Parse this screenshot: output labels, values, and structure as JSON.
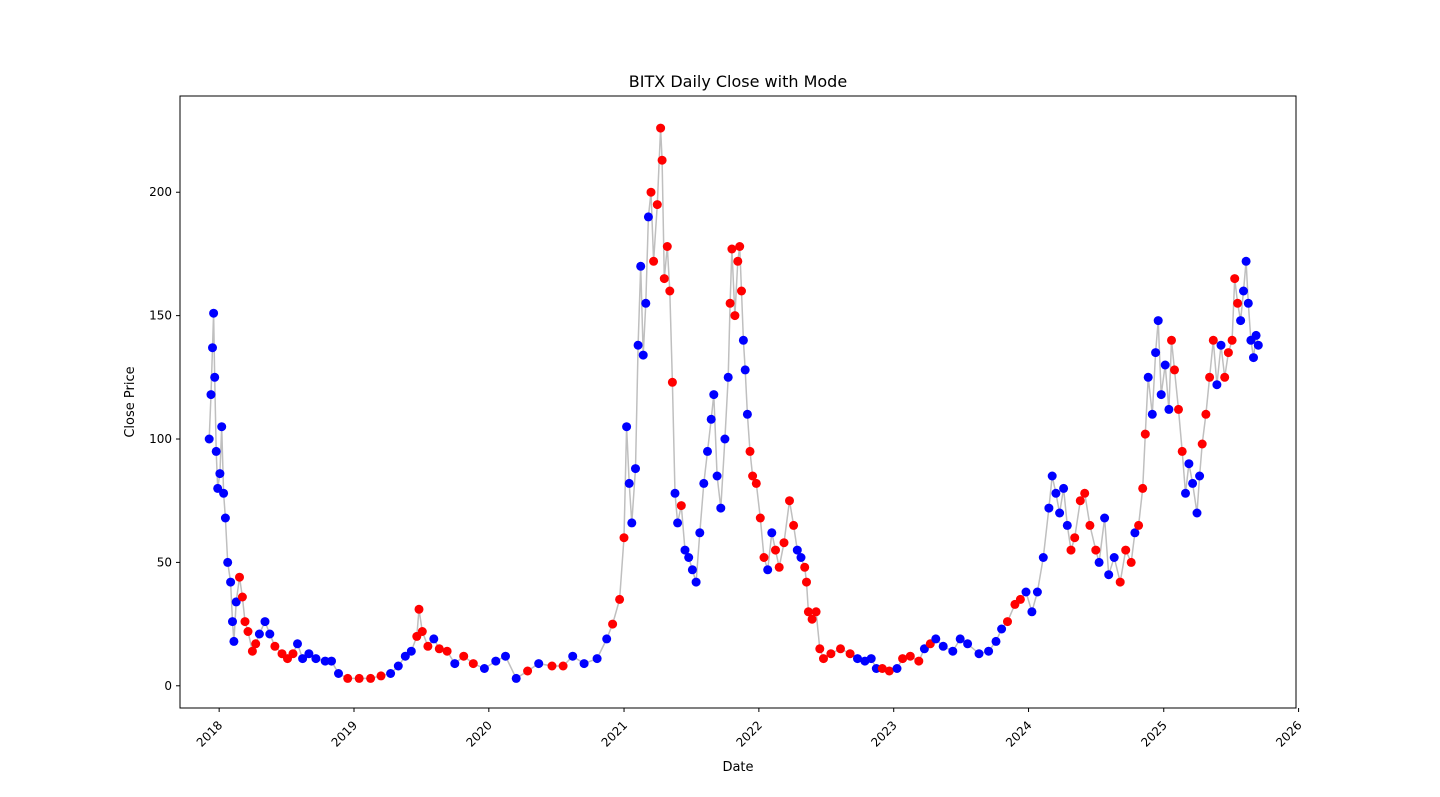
{
  "chart_data": {
    "type": "scatter",
    "title": "BITX Daily Close with Mode",
    "xlabel": "Date",
    "ylabel": "Close Price",
    "xlim": [
      "2017-09-17",
      "2025-12-25"
    ],
    "ylim": [
      -9,
      239
    ],
    "x_ticks": [
      "2018",
      "2019",
      "2020",
      "2021",
      "2022",
      "2023",
      "2024",
      "2025",
      "2026"
    ],
    "y_ticks": [
      0,
      50,
      100,
      150,
      200
    ],
    "grid": false,
    "legend": "none",
    "line_color": "#bfbfbf",
    "mode_colors": {
      "blue": "#0000ff",
      "red": "#ff0000"
    },
    "series": [
      {
        "x": "2017-12-05",
        "y": 100,
        "mode": "blue"
      },
      {
        "x": "2017-12-10",
        "y": 118,
        "mode": "blue"
      },
      {
        "x": "2017-12-14",
        "y": 137,
        "mode": "blue"
      },
      {
        "x": "2017-12-17",
        "y": 151,
        "mode": "blue"
      },
      {
        "x": "2017-12-20",
        "y": 125,
        "mode": "blue"
      },
      {
        "x": "2017-12-24",
        "y": 95,
        "mode": "blue"
      },
      {
        "x": "2017-12-28",
        "y": 80,
        "mode": "blue"
      },
      {
        "x": "2018-01-03",
        "y": 86,
        "mode": "blue"
      },
      {
        "x": "2018-01-08",
        "y": 105,
        "mode": "blue"
      },
      {
        "x": "2018-01-13",
        "y": 78,
        "mode": "blue"
      },
      {
        "x": "2018-01-18",
        "y": 68,
        "mode": "blue"
      },
      {
        "x": "2018-01-24",
        "y": 50,
        "mode": "blue"
      },
      {
        "x": "2018-02-01",
        "y": 42,
        "mode": "blue"
      },
      {
        "x": "2018-02-06",
        "y": 26,
        "mode": "blue"
      },
      {
        "x": "2018-02-10",
        "y": 18,
        "mode": "blue"
      },
      {
        "x": "2018-02-16",
        "y": 34,
        "mode": "blue"
      },
      {
        "x": "2018-02-25",
        "y": 44,
        "mode": "red"
      },
      {
        "x": "2018-03-05",
        "y": 36,
        "mode": "red"
      },
      {
        "x": "2018-03-12",
        "y": 26,
        "mode": "red"
      },
      {
        "x": "2018-03-20",
        "y": 22,
        "mode": "red"
      },
      {
        "x": "2018-04-01",
        "y": 14,
        "mode": "red"
      },
      {
        "x": "2018-04-10",
        "y": 17,
        "mode": "red"
      },
      {
        "x": "2018-04-20",
        "y": 21,
        "mode": "blue"
      },
      {
        "x": "2018-05-05",
        "y": 26,
        "mode": "blue"
      },
      {
        "x": "2018-05-18",
        "y": 21,
        "mode": "blue"
      },
      {
        "x": "2018-06-01",
        "y": 16,
        "mode": "red"
      },
      {
        "x": "2018-06-20",
        "y": 13,
        "mode": "red"
      },
      {
        "x": "2018-07-05",
        "y": 11,
        "mode": "red"
      },
      {
        "x": "2018-07-20",
        "y": 13,
        "mode": "red"
      },
      {
        "x": "2018-08-01",
        "y": 17,
        "mode": "blue"
      },
      {
        "x": "2018-08-15",
        "y": 11,
        "mode": "blue"
      },
      {
        "x": "2018-09-01",
        "y": 13,
        "mode": "blue"
      },
      {
        "x": "2018-09-20",
        "y": 11,
        "mode": "blue"
      },
      {
        "x": "2018-10-15",
        "y": 10,
        "mode": "blue"
      },
      {
        "x": "2018-11-01",
        "y": 10,
        "mode": "blue"
      },
      {
        "x": "2018-11-20",
        "y": 5,
        "mode": "blue"
      },
      {
        "x": "2018-12-15",
        "y": 3,
        "mode": "red"
      },
      {
        "x": "2019-01-15",
        "y": 3,
        "mode": "red"
      },
      {
        "x": "2019-02-15",
        "y": 3,
        "mode": "red"
      },
      {
        "x": "2019-03-15",
        "y": 4,
        "mode": "red"
      },
      {
        "x": "2019-04-10",
        "y": 5,
        "mode": "blue"
      },
      {
        "x": "2019-05-01",
        "y": 8,
        "mode": "blue"
      },
      {
        "x": "2019-05-20",
        "y": 12,
        "mode": "blue"
      },
      {
        "x": "2019-06-05",
        "y": 14,
        "mode": "blue"
      },
      {
        "x": "2019-06-20",
        "y": 20,
        "mode": "red"
      },
      {
        "x": "2019-06-26",
        "y": 31,
        "mode": "red"
      },
      {
        "x": "2019-07-05",
        "y": 22,
        "mode": "red"
      },
      {
        "x": "2019-07-20",
        "y": 16,
        "mode": "red"
      },
      {
        "x": "2019-08-05",
        "y": 19,
        "mode": "blue"
      },
      {
        "x": "2019-08-20",
        "y": 15,
        "mode": "red"
      },
      {
        "x": "2019-09-10",
        "y": 14,
        "mode": "red"
      },
      {
        "x": "2019-10-01",
        "y": 9,
        "mode": "blue"
      },
      {
        "x": "2019-10-25",
        "y": 12,
        "mode": "red"
      },
      {
        "x": "2019-11-20",
        "y": 9,
        "mode": "red"
      },
      {
        "x": "2019-12-20",
        "y": 7,
        "mode": "blue"
      },
      {
        "x": "2020-01-20",
        "y": 10,
        "mode": "blue"
      },
      {
        "x": "2020-02-15",
        "y": 12,
        "mode": "blue"
      },
      {
        "x": "2020-03-15",
        "y": 3,
        "mode": "blue"
      },
      {
        "x": "2020-04-15",
        "y": 6,
        "mode": "red"
      },
      {
        "x": "2020-05-15",
        "y": 9,
        "mode": "blue"
      },
      {
        "x": "2020-06-20",
        "y": 8,
        "mode": "red"
      },
      {
        "x": "2020-07-20",
        "y": 8,
        "mode": "red"
      },
      {
        "x": "2020-08-15",
        "y": 12,
        "mode": "blue"
      },
      {
        "x": "2020-09-15",
        "y": 9,
        "mode": "blue"
      },
      {
        "x": "2020-10-20",
        "y": 11,
        "mode": "blue"
      },
      {
        "x": "2020-11-15",
        "y": 19,
        "mode": "blue"
      },
      {
        "x": "2020-12-01",
        "y": 25,
        "mode": "red"
      },
      {
        "x": "2020-12-20",
        "y": 35,
        "mode": "red"
      },
      {
        "x": "2021-01-01",
        "y": 60,
        "mode": "red"
      },
      {
        "x": "2021-01-08",
        "y": 105,
        "mode": "blue"
      },
      {
        "x": "2021-01-15",
        "y": 82,
        "mode": "blue"
      },
      {
        "x": "2021-01-22",
        "y": 66,
        "mode": "blue"
      },
      {
        "x": "2021-02-01",
        "y": 88,
        "mode": "blue"
      },
      {
        "x": "2021-02-08",
        "y": 138,
        "mode": "blue"
      },
      {
        "x": "2021-02-15",
        "y": 170,
        "mode": "blue"
      },
      {
        "x": "2021-02-22",
        "y": 134,
        "mode": "blue"
      },
      {
        "x": "2021-03-01",
        "y": 155,
        "mode": "blue"
      },
      {
        "x": "2021-03-08",
        "y": 190,
        "mode": "blue"
      },
      {
        "x": "2021-03-15",
        "y": 200,
        "mode": "red"
      },
      {
        "x": "2021-03-22",
        "y": 172,
        "mode": "red"
      },
      {
        "x": "2021-04-01",
        "y": 195,
        "mode": "red"
      },
      {
        "x": "2021-04-10",
        "y": 226,
        "mode": "red"
      },
      {
        "x": "2021-04-14",
        "y": 213,
        "mode": "red"
      },
      {
        "x": "2021-04-20",
        "y": 165,
        "mode": "red"
      },
      {
        "x": "2021-04-28",
        "y": 178,
        "mode": "red"
      },
      {
        "x": "2021-05-05",
        "y": 160,
        "mode": "red"
      },
      {
        "x": "2021-05-12",
        "y": 123,
        "mode": "red"
      },
      {
        "x": "2021-05-19",
        "y": 78,
        "mode": "blue"
      },
      {
        "x": "2021-05-26",
        "y": 66,
        "mode": "blue"
      },
      {
        "x": "2021-06-05",
        "y": 73,
        "mode": "red"
      },
      {
        "x": "2021-06-15",
        "y": 55,
        "mode": "blue"
      },
      {
        "x": "2021-06-25",
        "y": 52,
        "mode": "blue"
      },
      {
        "x": "2021-07-05",
        "y": 47,
        "mode": "blue"
      },
      {
        "x": "2021-07-15",
        "y": 42,
        "mode": "blue"
      },
      {
        "x": "2021-07-25",
        "y": 62,
        "mode": "blue"
      },
      {
        "x": "2021-08-05",
        "y": 82,
        "mode": "blue"
      },
      {
        "x": "2021-08-15",
        "y": 95,
        "mode": "blue"
      },
      {
        "x": "2021-08-25",
        "y": 108,
        "mode": "blue"
      },
      {
        "x": "2021-09-01",
        "y": 118,
        "mode": "blue"
      },
      {
        "x": "2021-09-10",
        "y": 85,
        "mode": "blue"
      },
      {
        "x": "2021-09-20",
        "y": 72,
        "mode": "blue"
      },
      {
        "x": "2021-10-01",
        "y": 100,
        "mode": "blue"
      },
      {
        "x": "2021-10-10",
        "y": 125,
        "mode": "blue"
      },
      {
        "x": "2021-10-15",
        "y": 155,
        "mode": "red"
      },
      {
        "x": "2021-10-20",
        "y": 177,
        "mode": "red"
      },
      {
        "x": "2021-10-28",
        "y": 150,
        "mode": "red"
      },
      {
        "x": "2021-11-05",
        "y": 172,
        "mode": "red"
      },
      {
        "x": "2021-11-10",
        "y": 178,
        "mode": "red"
      },
      {
        "x": "2021-11-15",
        "y": 160,
        "mode": "red"
      },
      {
        "x": "2021-11-20",
        "y": 140,
        "mode": "blue"
      },
      {
        "x": "2021-11-25",
        "y": 128,
        "mode": "blue"
      },
      {
        "x": "2021-12-01",
        "y": 110,
        "mode": "blue"
      },
      {
        "x": "2021-12-08",
        "y": 95,
        "mode": "red"
      },
      {
        "x": "2021-12-15",
        "y": 85,
        "mode": "red"
      },
      {
        "x": "2021-12-25",
        "y": 82,
        "mode": "red"
      },
      {
        "x": "2022-01-05",
        "y": 68,
        "mode": "red"
      },
      {
        "x": "2022-01-15",
        "y": 52,
        "mode": "red"
      },
      {
        "x": "2022-01-25",
        "y": 47,
        "mode": "blue"
      },
      {
        "x": "2022-02-05",
        "y": 62,
        "mode": "blue"
      },
      {
        "x": "2022-02-15",
        "y": 55,
        "mode": "red"
      },
      {
        "x": "2022-02-25",
        "y": 48,
        "mode": "red"
      },
      {
        "x": "2022-03-10",
        "y": 58,
        "mode": "red"
      },
      {
        "x": "2022-03-25",
        "y": 75,
        "mode": "red"
      },
      {
        "x": "2022-04-05",
        "y": 65,
        "mode": "red"
      },
      {
        "x": "2022-04-15",
        "y": 55,
        "mode": "blue"
      },
      {
        "x": "2022-04-25",
        "y": 52,
        "mode": "blue"
      },
      {
        "x": "2022-05-05",
        "y": 48,
        "mode": "red"
      },
      {
        "x": "2022-05-10",
        "y": 42,
        "mode": "red"
      },
      {
        "x": "2022-05-15",
        "y": 30,
        "mode": "red"
      },
      {
        "x": "2022-05-25",
        "y": 27,
        "mode": "red"
      },
      {
        "x": "2022-06-05",
        "y": 30,
        "mode": "red"
      },
      {
        "x": "2022-06-15",
        "y": 15,
        "mode": "red"
      },
      {
        "x": "2022-06-25",
        "y": 11,
        "mode": "red"
      },
      {
        "x": "2022-07-15",
        "y": 13,
        "mode": "red"
      },
      {
        "x": "2022-08-10",
        "y": 15,
        "mode": "red"
      },
      {
        "x": "2022-09-05",
        "y": 13,
        "mode": "red"
      },
      {
        "x": "2022-09-25",
        "y": 11,
        "mode": "blue"
      },
      {
        "x": "2022-10-15",
        "y": 10,
        "mode": "blue"
      },
      {
        "x": "2022-11-01",
        "y": 11,
        "mode": "blue"
      },
      {
        "x": "2022-11-15",
        "y": 7,
        "mode": "blue"
      },
      {
        "x": "2022-12-01",
        "y": 7,
        "mode": "red"
      },
      {
        "x": "2022-12-20",
        "y": 6,
        "mode": "red"
      },
      {
        "x": "2023-01-10",
        "y": 7,
        "mode": "blue"
      },
      {
        "x": "2023-01-25",
        "y": 11,
        "mode": "red"
      },
      {
        "x": "2023-02-15",
        "y": 12,
        "mode": "red"
      },
      {
        "x": "2023-03-10",
        "y": 10,
        "mode": "red"
      },
      {
        "x": "2023-03-25",
        "y": 15,
        "mode": "blue"
      },
      {
        "x": "2023-04-10",
        "y": 17,
        "mode": "red"
      },
      {
        "x": "2023-04-25",
        "y": 19,
        "mode": "blue"
      },
      {
        "x": "2023-05-15",
        "y": 16,
        "mode": "blue"
      },
      {
        "x": "2023-06-10",
        "y": 14,
        "mode": "blue"
      },
      {
        "x": "2023-06-30",
        "y": 19,
        "mode": "blue"
      },
      {
        "x": "2023-07-20",
        "y": 17,
        "mode": "blue"
      },
      {
        "x": "2023-08-20",
        "y": 13,
        "mode": "blue"
      },
      {
        "x": "2023-09-15",
        "y": 14,
        "mode": "blue"
      },
      {
        "x": "2023-10-05",
        "y": 18,
        "mode": "blue"
      },
      {
        "x": "2023-10-20",
        "y": 23,
        "mode": "blue"
      },
      {
        "x": "2023-11-05",
        "y": 26,
        "mode": "red"
      },
      {
        "x": "2023-11-25",
        "y": 33,
        "mode": "red"
      },
      {
        "x": "2023-12-10",
        "y": 35,
        "mode": "red"
      },
      {
        "x": "2023-12-25",
        "y": 38,
        "mode": "blue"
      },
      {
        "x": "2024-01-10",
        "y": 30,
        "mode": "blue"
      },
      {
        "x": "2024-01-25",
        "y": 38,
        "mode": "blue"
      },
      {
        "x": "2024-02-10",
        "y": 52,
        "mode": "blue"
      },
      {
        "x": "2024-02-25",
        "y": 72,
        "mode": "blue"
      },
      {
        "x": "2024-03-05",
        "y": 85,
        "mode": "blue"
      },
      {
        "x": "2024-03-15",
        "y": 78,
        "mode": "blue"
      },
      {
        "x": "2024-03-25",
        "y": 70,
        "mode": "blue"
      },
      {
        "x": "2024-04-05",
        "y": 80,
        "mode": "blue"
      },
      {
        "x": "2024-04-15",
        "y": 65,
        "mode": "blue"
      },
      {
        "x": "2024-04-25",
        "y": 55,
        "mode": "red"
      },
      {
        "x": "2024-05-05",
        "y": 60,
        "mode": "red"
      },
      {
        "x": "2024-05-20",
        "y": 75,
        "mode": "red"
      },
      {
        "x": "2024-06-01",
        "y": 78,
        "mode": "red"
      },
      {
        "x": "2024-06-15",
        "y": 65,
        "mode": "red"
      },
      {
        "x": "2024-07-01",
        "y": 55,
        "mode": "red"
      },
      {
        "x": "2024-07-10",
        "y": 50,
        "mode": "blue"
      },
      {
        "x": "2024-07-25",
        "y": 68,
        "mode": "blue"
      },
      {
        "x": "2024-08-05",
        "y": 45,
        "mode": "blue"
      },
      {
        "x": "2024-08-20",
        "y": 52,
        "mode": "blue"
      },
      {
        "x": "2024-09-05",
        "y": 42,
        "mode": "red"
      },
      {
        "x": "2024-09-20",
        "y": 55,
        "mode": "red"
      },
      {
        "x": "2024-10-05",
        "y": 50,
        "mode": "red"
      },
      {
        "x": "2024-10-15",
        "y": 62,
        "mode": "blue"
      },
      {
        "x": "2024-10-25",
        "y": 65,
        "mode": "red"
      },
      {
        "x": "2024-11-05",
        "y": 80,
        "mode": "red"
      },
      {
        "x": "2024-11-12",
        "y": 102,
        "mode": "red"
      },
      {
        "x": "2024-11-20",
        "y": 125,
        "mode": "blue"
      },
      {
        "x": "2024-12-01",
        "y": 110,
        "mode": "blue"
      },
      {
        "x": "2024-12-10",
        "y": 135,
        "mode": "blue"
      },
      {
        "x": "2024-12-17",
        "y": 148,
        "mode": "blue"
      },
      {
        "x": "2024-12-25",
        "y": 118,
        "mode": "blue"
      },
      {
        "x": "2025-01-05",
        "y": 130,
        "mode": "blue"
      },
      {
        "x": "2025-01-15",
        "y": 112,
        "mode": "blue"
      },
      {
        "x": "2025-01-22",
        "y": 140,
        "mode": "red"
      },
      {
        "x": "2025-01-30",
        "y": 128,
        "mode": "red"
      },
      {
        "x": "2025-02-10",
        "y": 112,
        "mode": "red"
      },
      {
        "x": "2025-02-20",
        "y": 95,
        "mode": "red"
      },
      {
        "x": "2025-03-01",
        "y": 78,
        "mode": "blue"
      },
      {
        "x": "2025-03-10",
        "y": 90,
        "mode": "blue"
      },
      {
        "x": "2025-03-20",
        "y": 82,
        "mode": "blue"
      },
      {
        "x": "2025-04-01",
        "y": 70,
        "mode": "blue"
      },
      {
        "x": "2025-04-08",
        "y": 85,
        "mode": "blue"
      },
      {
        "x": "2025-04-15",
        "y": 98,
        "mode": "red"
      },
      {
        "x": "2025-04-25",
        "y": 110,
        "mode": "red"
      },
      {
        "x": "2025-05-05",
        "y": 125,
        "mode": "red"
      },
      {
        "x": "2025-05-15",
        "y": 140,
        "mode": "red"
      },
      {
        "x": "2025-05-25",
        "y": 122,
        "mode": "blue"
      },
      {
        "x": "2025-06-05",
        "y": 138,
        "mode": "blue"
      },
      {
        "x": "2025-06-15",
        "y": 125,
        "mode": "red"
      },
      {
        "x": "2025-06-25",
        "y": 135,
        "mode": "red"
      },
      {
        "x": "2025-07-05",
        "y": 140,
        "mode": "red"
      },
      {
        "x": "2025-07-12",
        "y": 165,
        "mode": "red"
      },
      {
        "x": "2025-07-20",
        "y": 155,
        "mode": "red"
      },
      {
        "x": "2025-07-28",
        "y": 148,
        "mode": "blue"
      },
      {
        "x": "2025-08-05",
        "y": 160,
        "mode": "blue"
      },
      {
        "x": "2025-08-12",
        "y": 172,
        "mode": "blue"
      },
      {
        "x": "2025-08-18",
        "y": 155,
        "mode": "blue"
      },
      {
        "x": "2025-08-25",
        "y": 140,
        "mode": "blue"
      },
      {
        "x": "2025-09-01",
        "y": 133,
        "mode": "blue"
      },
      {
        "x": "2025-09-08",
        "y": 142,
        "mode": "blue"
      },
      {
        "x": "2025-09-14",
        "y": 138,
        "mode": "blue"
      }
    ]
  }
}
